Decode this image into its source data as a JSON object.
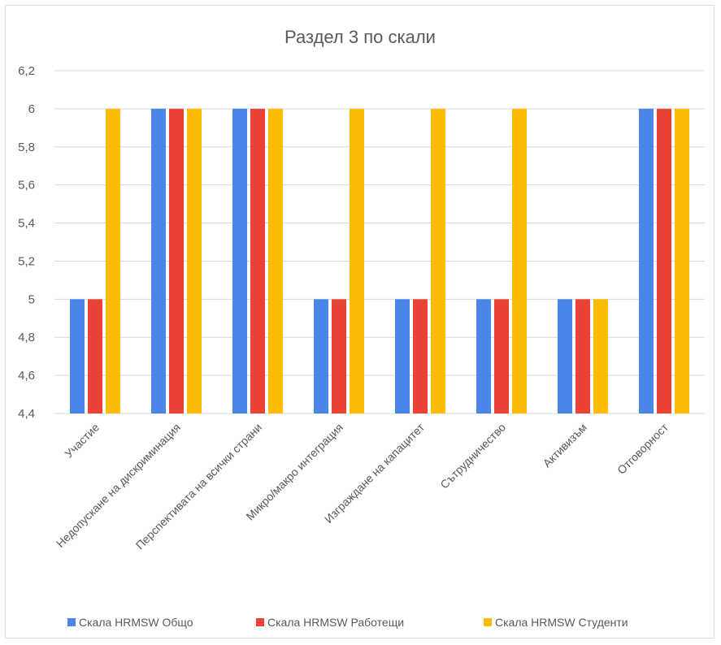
{
  "chart_data": {
    "type": "bar",
    "title": "Раздел 3 по скали",
    "categories": [
      "Участие",
      "Недопускане на дискриминация",
      "Перспективата на всички страни",
      "Микро/макро интеграция",
      "Изграждане на капацитет",
      "Сътрудничество",
      "Активизъм",
      "Отговорност"
    ],
    "series": [
      {
        "name": "Скала HRMSW Общо",
        "color": "#4a86e8",
        "values": [
          5,
          6,
          6,
          5,
          5,
          5,
          5,
          6
        ]
      },
      {
        "name": "Скала HRMSW Работещи",
        "color": "#ea4335",
        "values": [
          5,
          6,
          6,
          5,
          5,
          5,
          5,
          6
        ]
      },
      {
        "name": "Скала HRMSW Студенти",
        "color": "#fbbc04",
        "values": [
          6,
          6,
          6,
          6,
          6,
          6,
          5,
          6
        ]
      }
    ],
    "ylim": [
      4.4,
      6.2
    ],
    "yticks": [
      "4,4",
      "4,6",
      "4,8",
      "5",
      "5,2",
      "5,4",
      "5,6",
      "5,8",
      "6",
      "6,2"
    ],
    "xlabel": "",
    "ylabel": "",
    "grid": true,
    "legend_position": "bottom"
  }
}
